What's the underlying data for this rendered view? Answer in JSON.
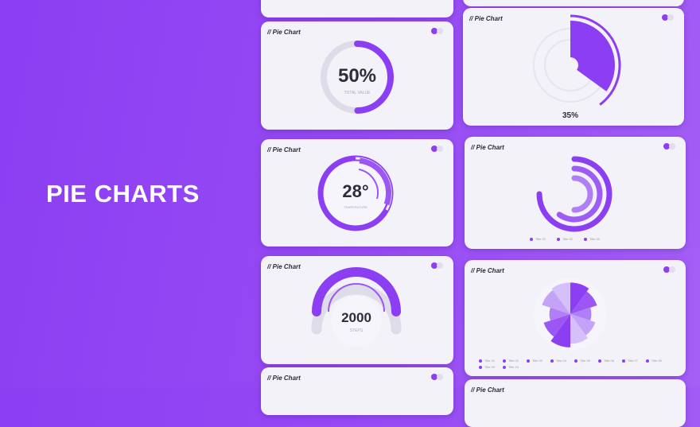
{
  "hero": {
    "title": "PIE CHARTS"
  },
  "card_title": "// Pie Chart",
  "colors": {
    "accent": "#8b3ef2",
    "light": "#b48cf7",
    "track": "#dedce9",
    "card": "#f3f2f9"
  },
  "cards": {
    "total": {
      "value": "50%",
      "label": "TOTAL VALUE",
      "fraction": 0.5
    },
    "radial": {
      "value": "35%",
      "fraction": 0.35
    },
    "temp": {
      "value": "28°",
      "label": "TEMPERATURE"
    },
    "rings": {
      "legend": [
        "Title 01",
        "Title 02",
        "Title 03"
      ],
      "fractions": [
        0.75,
        0.6,
        0.5
      ]
    },
    "steps": {
      "value": "2000",
      "label": "STEPS"
    },
    "rose": {
      "legend": [
        "Title 01",
        "Title 02",
        "Title 03",
        "Title 04",
        "Title 05",
        "Title 06",
        "Title 07",
        "Title 08",
        "Title 09",
        "Title 10"
      ],
      "values": [
        0.9,
        0.8,
        0.6,
        0.75,
        0.85,
        0.95,
        0.8,
        0.6,
        0.85,
        0.9
      ]
    }
  }
}
